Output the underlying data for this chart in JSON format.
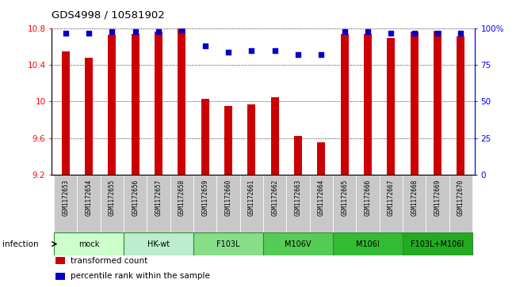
{
  "title": "GDS4998 / 10581902",
  "samples": [
    "GSM1172653",
    "GSM1172654",
    "GSM1172655",
    "GSM1172656",
    "GSM1172657",
    "GSM1172658",
    "GSM1172659",
    "GSM1172660",
    "GSM1172661",
    "GSM1172662",
    "GSM1172663",
    "GSM1172664",
    "GSM1172665",
    "GSM1172666",
    "GSM1172667",
    "GSM1172668",
    "GSM1172669",
    "GSM1172670"
  ],
  "bar_values": [
    10.55,
    10.48,
    10.73,
    10.74,
    10.77,
    10.8,
    10.03,
    9.95,
    9.97,
    10.05,
    9.62,
    9.55,
    10.74,
    10.74,
    10.7,
    10.77,
    10.78,
    10.72
  ],
  "percentile_values": [
    97,
    97,
    98,
    98,
    98,
    99,
    88,
    84,
    85,
    85,
    82,
    82,
    98,
    98,
    97,
    97,
    97,
    97
  ],
  "ylim_left": [
    9.2,
    10.8
  ],
  "yticks_left": [
    9.2,
    9.6,
    10.0,
    10.4,
    10.8
  ],
  "ytick_labels_left": [
    "9.2",
    "9.6",
    "10",
    "10.4",
    "10.8"
  ],
  "ylim_right": [
    0,
    100
  ],
  "yticks_right": [
    0,
    25,
    50,
    75,
    100
  ],
  "ytick_labels_right": [
    "0",
    "25",
    "50",
    "75",
    "100%"
  ],
  "bar_color": "#cc0000",
  "percentile_color": "#0000cc",
  "infection_label": "infection",
  "legend_items": [
    {
      "label": "transformed count",
      "color": "#cc0000"
    },
    {
      "label": "percentile rank within the sample",
      "color": "#0000cc"
    }
  ],
  "sample_bg_color": "#c8c8c8",
  "groups": [
    {
      "label": "mock",
      "start": 0,
      "end": 2,
      "color": "#ccffcc"
    },
    {
      "label": "HK-wt",
      "start": 3,
      "end": 5,
      "color": "#bbeecc"
    },
    {
      "label": "F103L",
      "start": 6,
      "end": 8,
      "color": "#88dd88"
    },
    {
      "label": "M106V",
      "start": 9,
      "end": 11,
      "color": "#55cc55"
    },
    {
      "label": "M106I",
      "start": 12,
      "end": 14,
      "color": "#33bb33"
    },
    {
      "label": "F103L+M106I",
      "start": 15,
      "end": 17,
      "color": "#22aa22"
    }
  ]
}
